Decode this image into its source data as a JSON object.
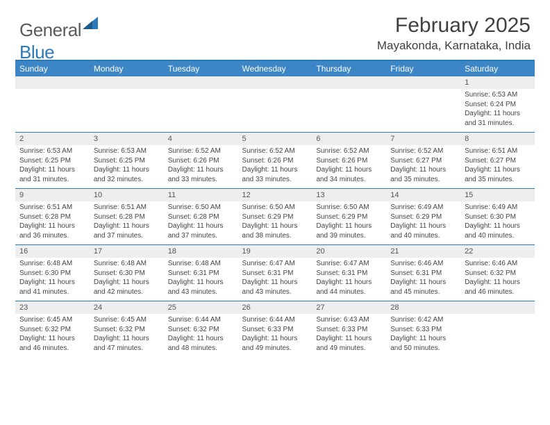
{
  "brand": {
    "part1": "General",
    "part2": "Blue"
  },
  "title": "February 2025",
  "location": "Mayakonda, Karnataka, India",
  "colors": {
    "accent": "#2a7ab9",
    "header_bar": "#3d86c6",
    "daynum_bg": "#eeeeee",
    "text": "#333333",
    "logo_gray": "#5a5a5a"
  },
  "weekdays": [
    "Sunday",
    "Monday",
    "Tuesday",
    "Wednesday",
    "Thursday",
    "Friday",
    "Saturday"
  ],
  "weeks": [
    {
      "nums": [
        "",
        "",
        "",
        "",
        "",
        "",
        "1"
      ],
      "cells": [
        "",
        "",
        "",
        "",
        "",
        "",
        "Sunrise: 6:53 AM\nSunset: 6:24 PM\nDaylight: 11 hours and 31 minutes."
      ]
    },
    {
      "nums": [
        "2",
        "3",
        "4",
        "5",
        "6",
        "7",
        "8"
      ],
      "cells": [
        "Sunrise: 6:53 AM\nSunset: 6:25 PM\nDaylight: 11 hours and 31 minutes.",
        "Sunrise: 6:53 AM\nSunset: 6:25 PM\nDaylight: 11 hours and 32 minutes.",
        "Sunrise: 6:52 AM\nSunset: 6:26 PM\nDaylight: 11 hours and 33 minutes.",
        "Sunrise: 6:52 AM\nSunset: 6:26 PM\nDaylight: 11 hours and 33 minutes.",
        "Sunrise: 6:52 AM\nSunset: 6:26 PM\nDaylight: 11 hours and 34 minutes.",
        "Sunrise: 6:52 AM\nSunset: 6:27 PM\nDaylight: 11 hours and 35 minutes.",
        "Sunrise: 6:51 AM\nSunset: 6:27 PM\nDaylight: 11 hours and 35 minutes."
      ]
    },
    {
      "nums": [
        "9",
        "10",
        "11",
        "12",
        "13",
        "14",
        "15"
      ],
      "cells": [
        "Sunrise: 6:51 AM\nSunset: 6:28 PM\nDaylight: 11 hours and 36 minutes.",
        "Sunrise: 6:51 AM\nSunset: 6:28 PM\nDaylight: 11 hours and 37 minutes.",
        "Sunrise: 6:50 AM\nSunset: 6:28 PM\nDaylight: 11 hours and 37 minutes.",
        "Sunrise: 6:50 AM\nSunset: 6:29 PM\nDaylight: 11 hours and 38 minutes.",
        "Sunrise: 6:50 AM\nSunset: 6:29 PM\nDaylight: 11 hours and 39 minutes.",
        "Sunrise: 6:49 AM\nSunset: 6:29 PM\nDaylight: 11 hours and 40 minutes.",
        "Sunrise: 6:49 AM\nSunset: 6:30 PM\nDaylight: 11 hours and 40 minutes."
      ]
    },
    {
      "nums": [
        "16",
        "17",
        "18",
        "19",
        "20",
        "21",
        "22"
      ],
      "cells": [
        "Sunrise: 6:48 AM\nSunset: 6:30 PM\nDaylight: 11 hours and 41 minutes.",
        "Sunrise: 6:48 AM\nSunset: 6:30 PM\nDaylight: 11 hours and 42 minutes.",
        "Sunrise: 6:48 AM\nSunset: 6:31 PM\nDaylight: 11 hours and 43 minutes.",
        "Sunrise: 6:47 AM\nSunset: 6:31 PM\nDaylight: 11 hours and 43 minutes.",
        "Sunrise: 6:47 AM\nSunset: 6:31 PM\nDaylight: 11 hours and 44 minutes.",
        "Sunrise: 6:46 AM\nSunset: 6:31 PM\nDaylight: 11 hours and 45 minutes.",
        "Sunrise: 6:46 AM\nSunset: 6:32 PM\nDaylight: 11 hours and 46 minutes."
      ]
    },
    {
      "nums": [
        "23",
        "24",
        "25",
        "26",
        "27",
        "28",
        ""
      ],
      "cells": [
        "Sunrise: 6:45 AM\nSunset: 6:32 PM\nDaylight: 11 hours and 46 minutes.",
        "Sunrise: 6:45 AM\nSunset: 6:32 PM\nDaylight: 11 hours and 47 minutes.",
        "Sunrise: 6:44 AM\nSunset: 6:32 PM\nDaylight: 11 hours and 48 minutes.",
        "Sunrise: 6:44 AM\nSunset: 6:33 PM\nDaylight: 11 hours and 49 minutes.",
        "Sunrise: 6:43 AM\nSunset: 6:33 PM\nDaylight: 11 hours and 49 minutes.",
        "Sunrise: 6:42 AM\nSunset: 6:33 PM\nDaylight: 11 hours and 50 minutes.",
        ""
      ]
    }
  ]
}
